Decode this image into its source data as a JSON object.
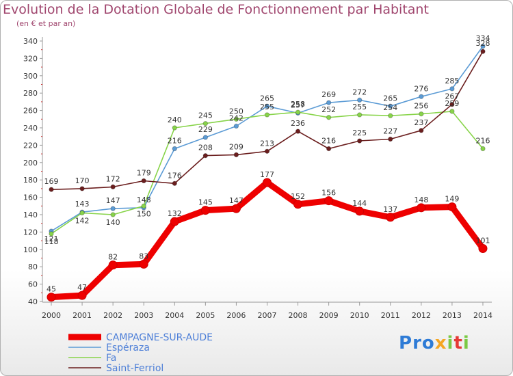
{
  "header": {
    "title": "Evolution de la Dotation Globale de Fonctionnement par Habitant",
    "subtitle": "(en € et par an)"
  },
  "logo": {
    "text": "Proxiti"
  },
  "colors": {
    "campagne": "#ee0000",
    "esperaza": "#5b9bd5",
    "fa": "#88d44a",
    "saint_ferriol": "#6b1e1e",
    "title": "#a0466e",
    "legend_text": "#4d7fd8"
  },
  "chart_data": {
    "type": "line",
    "title": "Evolution de la Dotation Globale de Fonctionnement par Habitant",
    "subtitle": "(en € et par an)",
    "xlabel": "",
    "ylabel": "",
    "ylim": [
      40,
      340
    ],
    "yticks": [
      40,
      60,
      80,
      100,
      120,
      140,
      160,
      180,
      200,
      220,
      240,
      260,
      280,
      300,
      320,
      340
    ],
    "x": [
      "2000",
      "2001",
      "2002",
      "2003",
      "2004",
      "2005",
      "2006",
      "2007",
      "2008",
      "2009",
      "2010",
      "2011",
      "2012",
      "2013",
      "2014"
    ],
    "series": [
      {
        "name": "CAMPAGNE-SUR-AUDE",
        "key": "campagne",
        "values": [
          45,
          47,
          82,
          83,
          132,
          145,
          147,
          177,
          152,
          156,
          144,
          137,
          148,
          149,
          101
        ]
      },
      {
        "name": "Espéraza",
        "key": "esperaza",
        "values": [
          121,
          143,
          147,
          148,
          216,
          229,
          242,
          265,
          257,
          269,
          272,
          265,
          276,
          285,
          334
        ]
      },
      {
        "name": "Fa",
        "key": "fa",
        "values": [
          118,
          142,
          140,
          150,
          240,
          245,
          250,
          255,
          258,
          252,
          255,
          254,
          256,
          259,
          216
        ]
      },
      {
        "name": "Saint-Ferriol",
        "key": "saint_ferriol",
        "values": [
          169,
          170,
          172,
          179,
          176,
          208,
          209,
          213,
          236,
          216,
          225,
          227,
          237,
          267,
          328
        ]
      }
    ],
    "legend": [
      "CAMPAGNE-SUR-AUDE",
      "Espéraza",
      "Fa",
      "Saint-Ferriol"
    ],
    "legend_position": "bottom-left",
    "grid": false
  }
}
